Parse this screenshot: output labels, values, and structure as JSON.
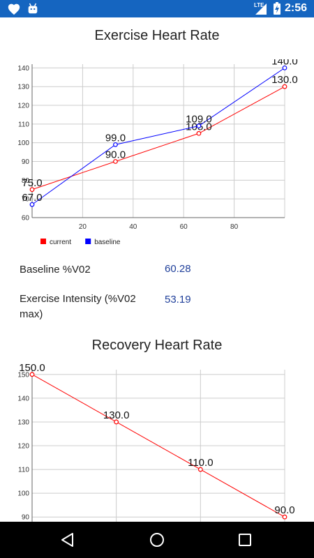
{
  "status_bar": {
    "time": "2:56",
    "network": "LTE",
    "icons": [
      "heart-icon",
      "android-icon",
      "signal-icon",
      "battery-charging-icon"
    ]
  },
  "exercise": {
    "title": "Exercise Heart Rate"
  },
  "stats": [
    {
      "label": "Baseline %V02",
      "value": "60.28"
    },
    {
      "label": "Exercise Intensity (%V02 max)",
      "value": "53.19"
    }
  ],
  "recovery": {
    "title": "Recovery Heart Rate"
  },
  "colors": {
    "status_bar": "#1565C0",
    "current": "#ff0000",
    "baseline": "#0000ff",
    "value_text": "#1f3f9a",
    "grid": "#cccccc"
  },
  "chart_data": [
    {
      "type": "line",
      "title": "Exercise Heart Rate",
      "xlim": [
        0,
        100
      ],
      "ylim": [
        60,
        142
      ],
      "x_ticks": [
        "20",
        "40",
        "60",
        "80"
      ],
      "y_ticks": [
        "60",
        "70",
        "80",
        "90",
        "100",
        "110",
        "120",
        "130",
        "140"
      ],
      "grid": true,
      "legend_position": "bottom-left",
      "series": [
        {
          "name": "current",
          "color": "#ff0000",
          "points": [
            [
              0,
              75.0
            ],
            [
              33,
              90.0
            ],
            [
              66,
              105.0
            ],
            [
              100,
              130.0
            ]
          ],
          "labels": [
            "75.0",
            "90.0",
            "105.0",
            "130.0"
          ]
        },
        {
          "name": "baseline",
          "color": "#0000ff",
          "points": [
            [
              0,
              67.0
            ],
            [
              33,
              99.0
            ],
            [
              66,
              109.0
            ],
            [
              100,
              140.0
            ]
          ],
          "labels": [
            "67.0",
            "99.0",
            "109.0",
            "140.0"
          ]
        }
      ]
    },
    {
      "type": "line",
      "title": "Recovery Heart Rate",
      "xlim": [
        0,
        3
      ],
      "ylim": [
        88,
        152
      ],
      "y_ticks": [
        "90",
        "100",
        "110",
        "120",
        "130",
        "140",
        "150"
      ],
      "grid": true,
      "series": [
        {
          "color": "#ff0000",
          "points": [
            [
              0,
              150.0
            ],
            [
              1,
              130.0
            ],
            [
              2,
              110.0
            ],
            [
              3,
              90.0
            ]
          ],
          "labels": [
            "150.0",
            "130.0",
            "110.0",
            "90.0"
          ]
        }
      ]
    }
  ],
  "nav_bar": {
    "icons": [
      "back-icon",
      "home-icon",
      "recents-icon"
    ]
  }
}
